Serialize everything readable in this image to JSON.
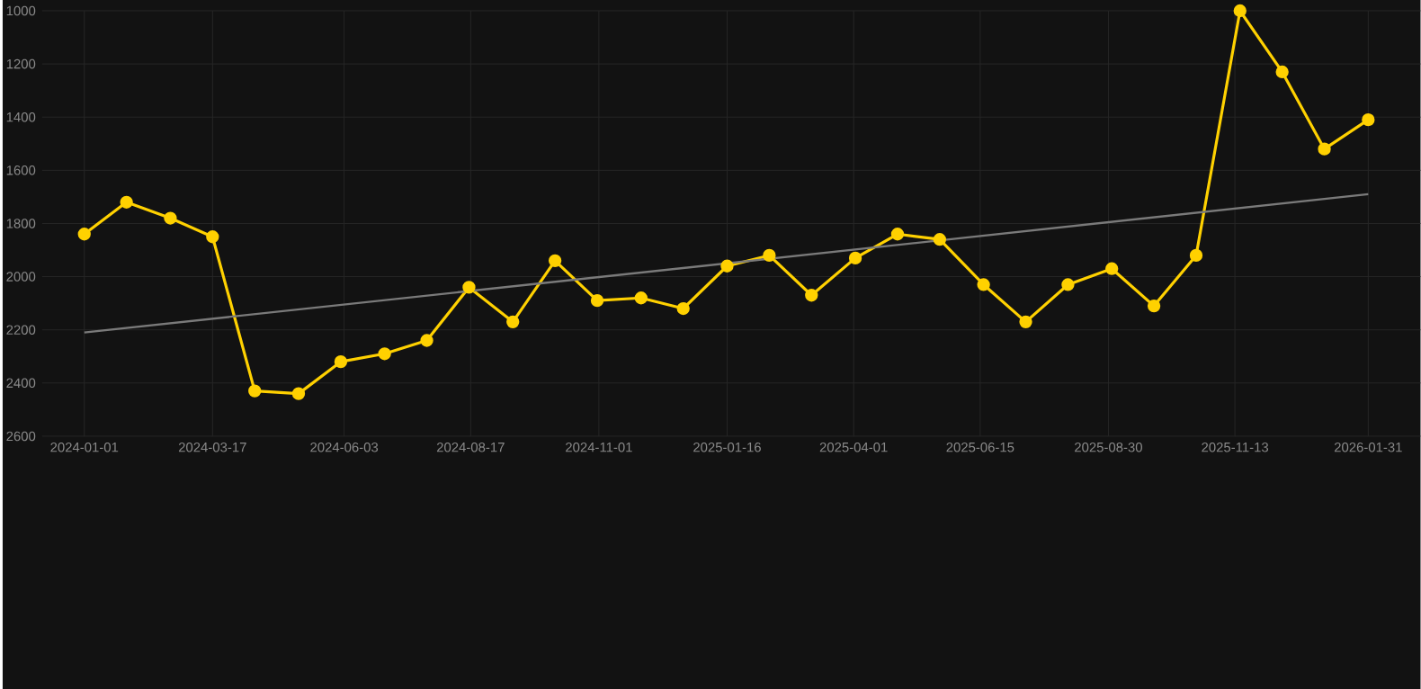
{
  "chart_data": {
    "type": "line",
    "x": [
      "2024-01-01",
      "2024-01-26",
      "2024-02-21",
      "2024-03-17",
      "2024-04-11",
      "2024-05-07",
      "2024-06-01",
      "2024-06-27",
      "2024-07-22",
      "2024-08-16",
      "2024-09-11",
      "2024-10-06",
      "2024-10-31",
      "2024-11-26",
      "2024-12-21",
      "2025-01-16",
      "2025-02-10",
      "2025-03-07",
      "2025-04-02",
      "2025-04-27",
      "2025-05-22",
      "2025-06-17",
      "2025-07-12",
      "2025-08-06",
      "2025-09-01",
      "2025-09-26",
      "2025-10-21",
      "2025-11-16",
      "2025-12-11",
      "2026-01-05",
      "2026-01-31"
    ],
    "series": [
      {
        "color": "#ffd100",
        "values": [
          1840,
          1720,
          1780,
          1850,
          2430,
          2440,
          2320,
          2290,
          2240,
          2040,
          2170,
          1940,
          2090,
          2080,
          2120,
          1960,
          1920,
          2070,
          1930,
          1840,
          1860,
          2030,
          2170,
          2030,
          1970,
          2110,
          1920,
          1000,
          1230,
          1520,
          1410
        ]
      },
      {
        "type": "line",
        "marker": "none",
        "color": "#7a7a7a",
        "x": [
          "2024-01-01",
          "2026-01-31"
        ],
        "values": [
          2210,
          1690
        ]
      }
    ],
    "xlim": [
      "2023-12-07",
      "2026-03-03"
    ],
    "xticks": [
      "2024-01-01",
      "2024-03-17",
      "2024-06-03",
      "2024-08-17",
      "2024-11-01",
      "2025-01-16",
      "2025-04-01",
      "2025-06-15",
      "2025-08-30",
      "2025-11-13",
      "2026-01-31"
    ],
    "ylim": [
      2600,
      1000
    ],
    "yticks": [
      1000,
      1200,
      1400,
      1600,
      1800,
      2000,
      2200,
      2400,
      2600
    ],
    "grid": true,
    "marker": "circle"
  }
}
